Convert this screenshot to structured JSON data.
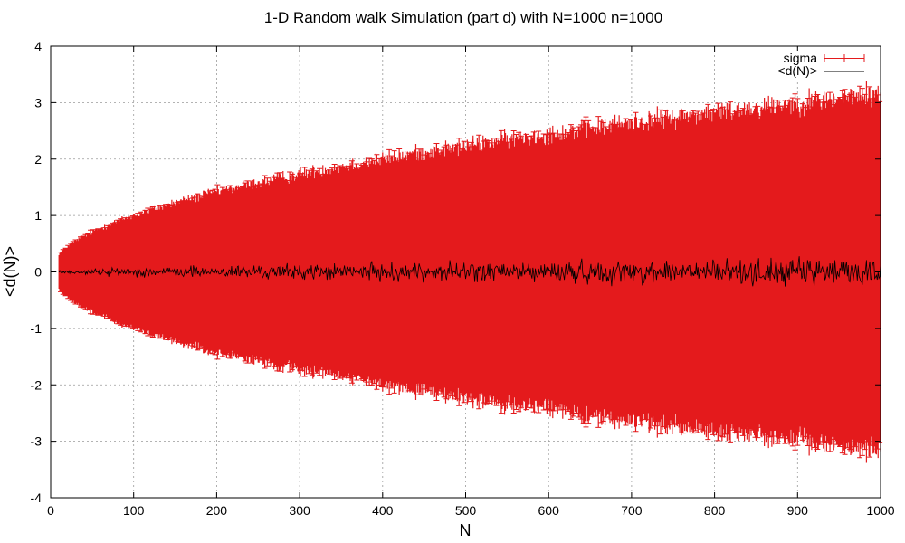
{
  "chart_data": {
    "type": "line",
    "title": "1-D Random walk Simulation (part d) with N=1000 n=1000",
    "xlabel": "N",
    "ylabel": "<d(N)>",
    "xlim": [
      0,
      1000
    ],
    "ylim": [
      -4,
      4
    ],
    "xticks": [
      "0",
      "100",
      "200",
      "300",
      "400",
      "500",
      "600",
      "700",
      "800",
      "900",
      "1000"
    ],
    "yticks": [
      "-4",
      "-3",
      "-2",
      "-1",
      "0",
      "1",
      "2",
      "3",
      "4"
    ],
    "grid": true,
    "legend_position": "top-right",
    "x_start": 10,
    "x_end": 1000,
    "series": [
      {
        "name": "sigma",
        "style": "errorbars",
        "color": "#e41a1c",
        "description_values": {
          "note_sigma_vs_N": [
            {
              "N": 10,
              "sigma": 0.32
            },
            {
              "N": 100,
              "sigma": 1.0
            },
            {
              "N": 200,
              "sigma": 1.41
            },
            {
              "N": 300,
              "sigma": 1.73
            },
            {
              "N": 400,
              "sigma": 2.0
            },
            {
              "N": 500,
              "sigma": 2.24
            },
            {
              "N": 600,
              "sigma": 2.45
            },
            {
              "N": 700,
              "sigma": 2.65
            },
            {
              "N": 800,
              "sigma": 2.83
            },
            {
              "N": 900,
              "sigma": 3.0
            },
            {
              "N": 1000,
              "sigma": 3.16
            }
          ]
        }
      },
      {
        "name": "<d(N)>",
        "style": "line",
        "color": "#000000",
        "values_mean_approx": 0.0,
        "values_fluctuation_amplitude_at_N1000": 0.1
      }
    ]
  }
}
